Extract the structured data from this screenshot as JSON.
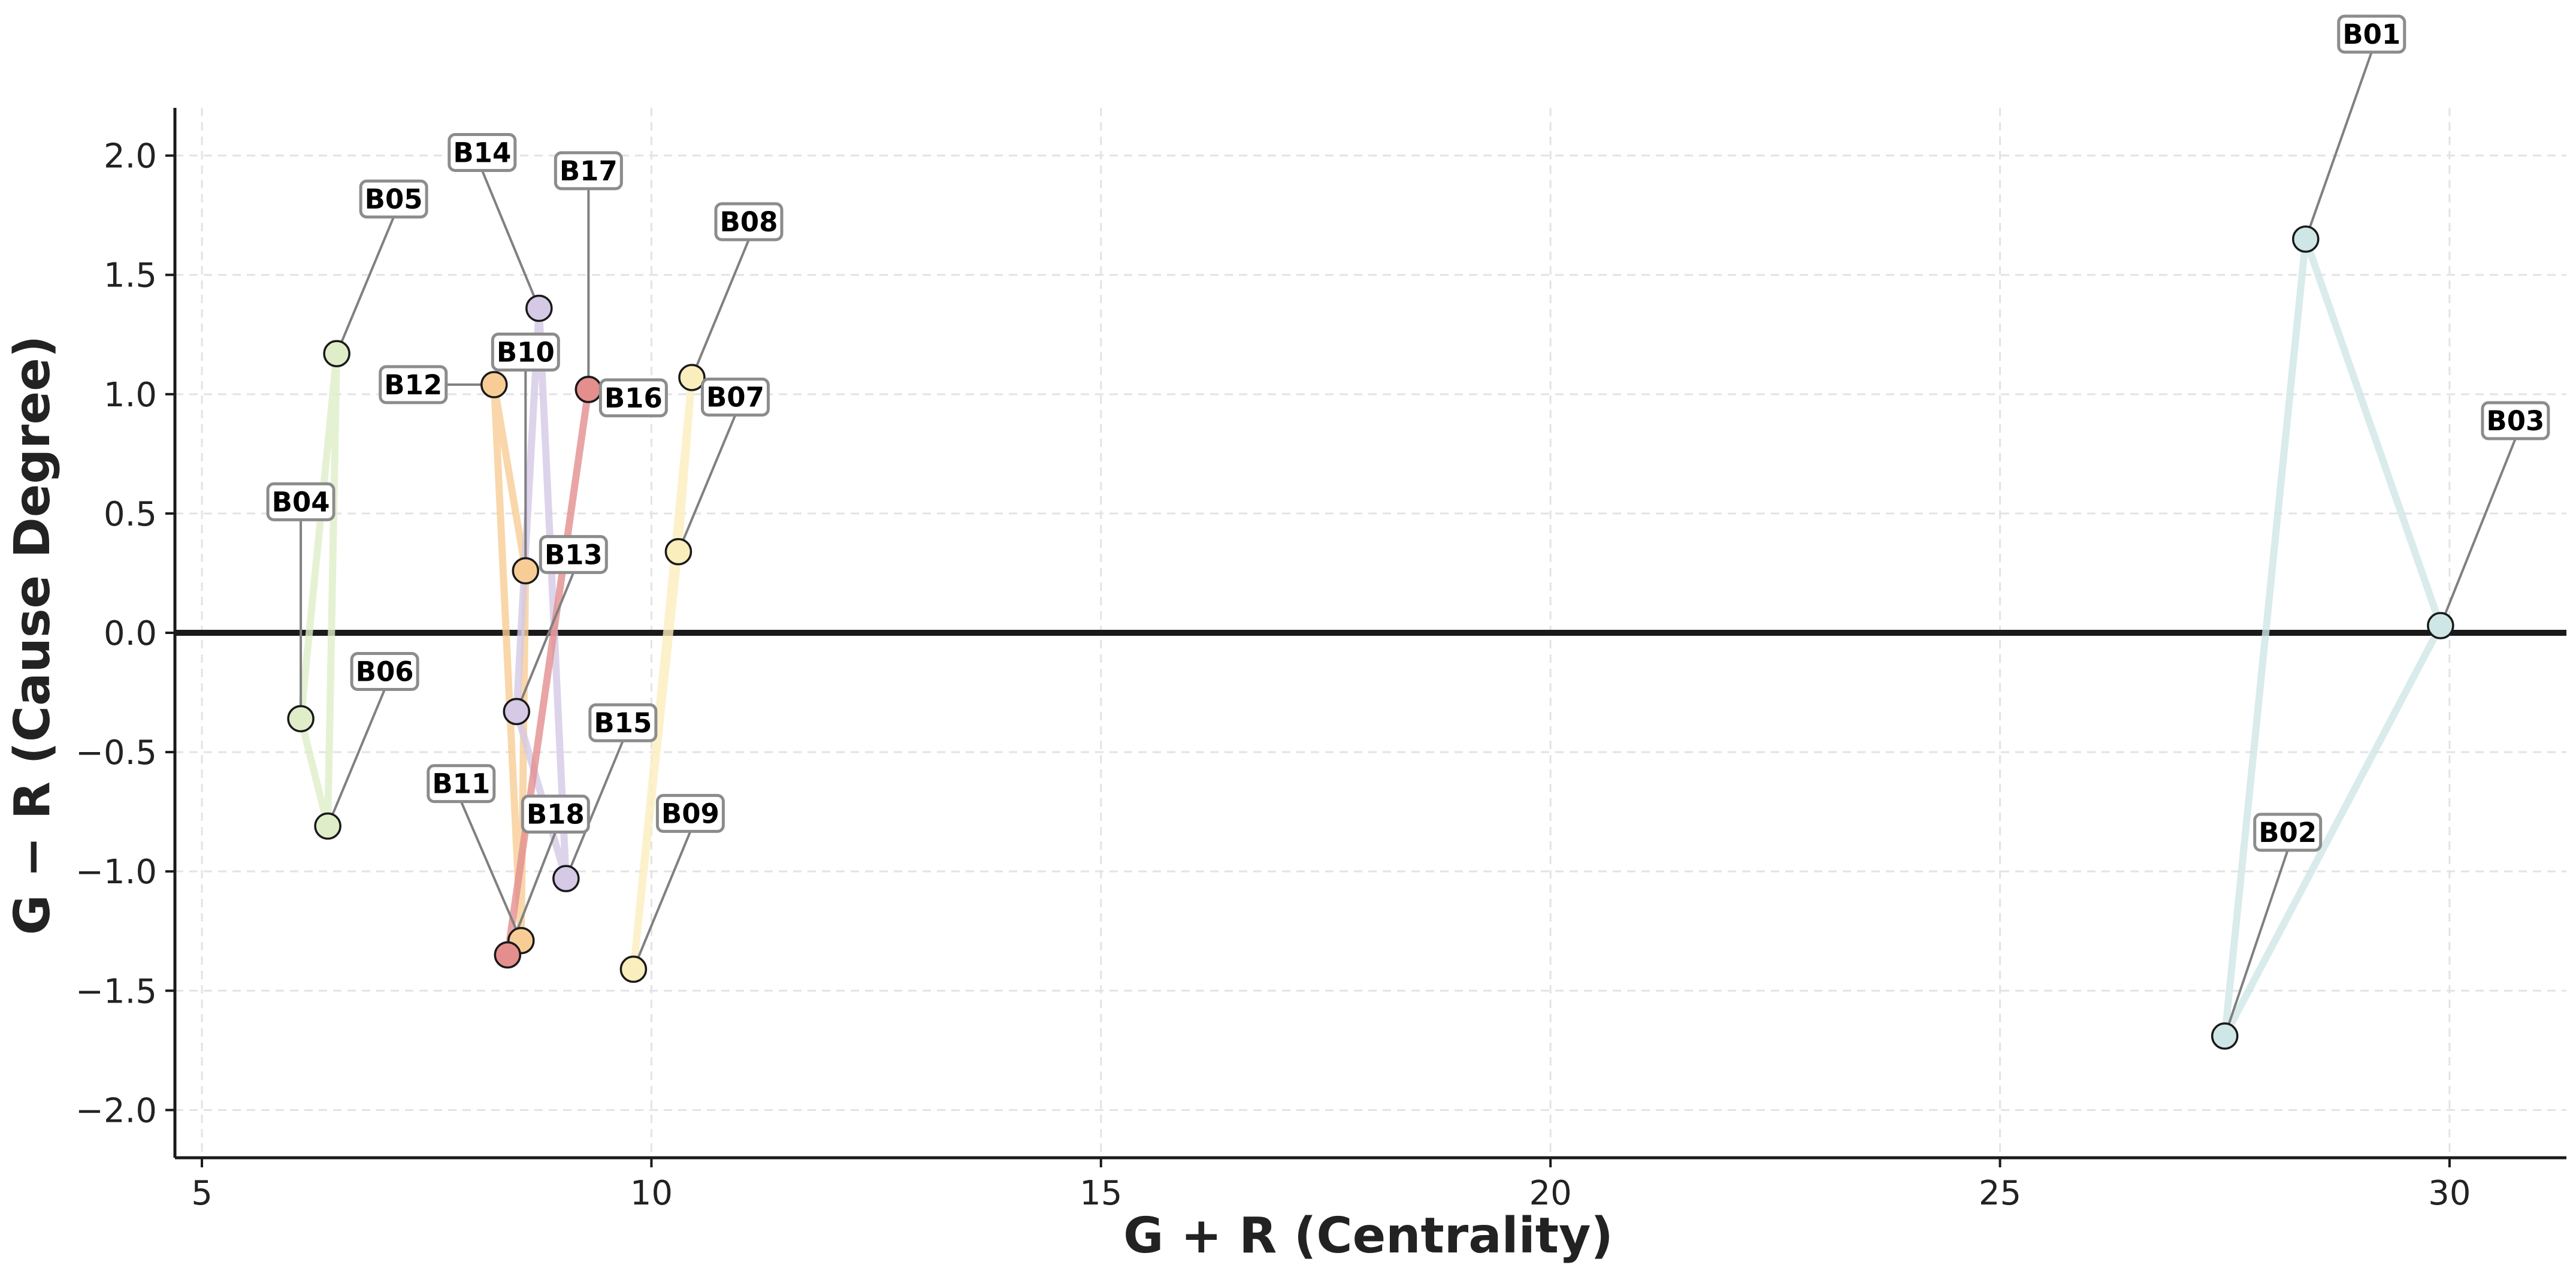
{
  "chart_data": {
    "type": "scatter",
    "title": "",
    "xlabel": "G + R (Centrality)",
    "ylabel": "G − R (Cause Degree)",
    "xlim": [
      4.7,
      31.3
    ],
    "ylim": [
      -2.2,
      2.2
    ],
    "x_ticks": [
      5,
      10,
      15,
      20,
      25,
      30
    ],
    "y_ticks": [
      -2.0,
      -1.5,
      -1.0,
      -0.5,
      0.0,
      0.5,
      1.0,
      1.5,
      2.0
    ],
    "x_tick_labels": [
      "5",
      "10",
      "15",
      "20",
      "25",
      "30"
    ],
    "y_tick_labels": [
      "−2.0",
      "−1.5",
      "−1.0",
      "−0.5",
      "0.0",
      "0.5",
      "1.0",
      "1.5",
      "2.0"
    ],
    "grid": true,
    "reference_line_y": 0,
    "points": [
      {
        "label": "B01",
        "x": 28.4,
        "y": 1.65,
        "color": "#cfe6e6"
      },
      {
        "label": "B02",
        "x": 27.5,
        "y": -1.69,
        "color": "#cfe6e6"
      },
      {
        "label": "B03",
        "x": 29.9,
        "y": 0.03,
        "color": "#cfe6e6"
      },
      {
        "label": "B04",
        "x": 6.1,
        "y": -0.36,
        "color": "#dfeec8"
      },
      {
        "label": "B05",
        "x": 6.5,
        "y": 1.17,
        "color": "#dfeec8"
      },
      {
        "label": "B06",
        "x": 6.4,
        "y": -0.81,
        "color": "#dfeec8"
      },
      {
        "label": "B07",
        "x": 10.3,
        "y": 0.34,
        "color": "#fbeebd"
      },
      {
        "label": "B08",
        "x": 10.45,
        "y": 1.07,
        "color": "#fbeebd"
      },
      {
        "label": "B09",
        "x": 9.8,
        "y": -1.41,
        "color": "#fbeebd"
      },
      {
        "label": "B10",
        "x": 8.6,
        "y": 0.26,
        "color": "#f8cd95"
      },
      {
        "label": "B11",
        "x": 8.55,
        "y": -1.29,
        "color": "#f8cd95"
      },
      {
        "label": "B12",
        "x": 8.25,
        "y": 1.04,
        "color": "#f8cd95"
      },
      {
        "label": "B13",
        "x": 8.5,
        "y": -0.33,
        "color": "#d5c9e6"
      },
      {
        "label": "B14",
        "x": 8.75,
        "y": 1.36,
        "color": "#d5c9e6"
      },
      {
        "label": "B15",
        "x": 9.05,
        "y": -1.03,
        "color": "#d5c9e6"
      },
      {
        "label": "B16",
        "x": 9.3,
        "y": 1.02,
        "color": "#e48e8e"
      },
      {
        "label": "B17",
        "x": 9.3,
        "y": 1.02,
        "color": "#e48e8e"
      },
      {
        "label": "B18",
        "x": 8.4,
        "y": -1.35,
        "color": "#e48e8e"
      }
    ],
    "groups": [
      {
        "color": "#cfe6e6",
        "members": [
          "B01",
          "B02",
          "B03"
        ]
      },
      {
        "color": "#dfeec8",
        "members": [
          "B04",
          "B05",
          "B06"
        ]
      },
      {
        "color": "#fbeebd",
        "members": [
          "B07",
          "B08",
          "B09"
        ]
      },
      {
        "color": "#f8cd95",
        "members": [
          "B10",
          "B11",
          "B12"
        ]
      },
      {
        "color": "#d5c9e6",
        "members": [
          "B13",
          "B14",
          "B15"
        ]
      },
      {
        "color": "#e48e8e",
        "members": [
          "B16",
          "B17",
          "B18"
        ]
      }
    ]
  }
}
